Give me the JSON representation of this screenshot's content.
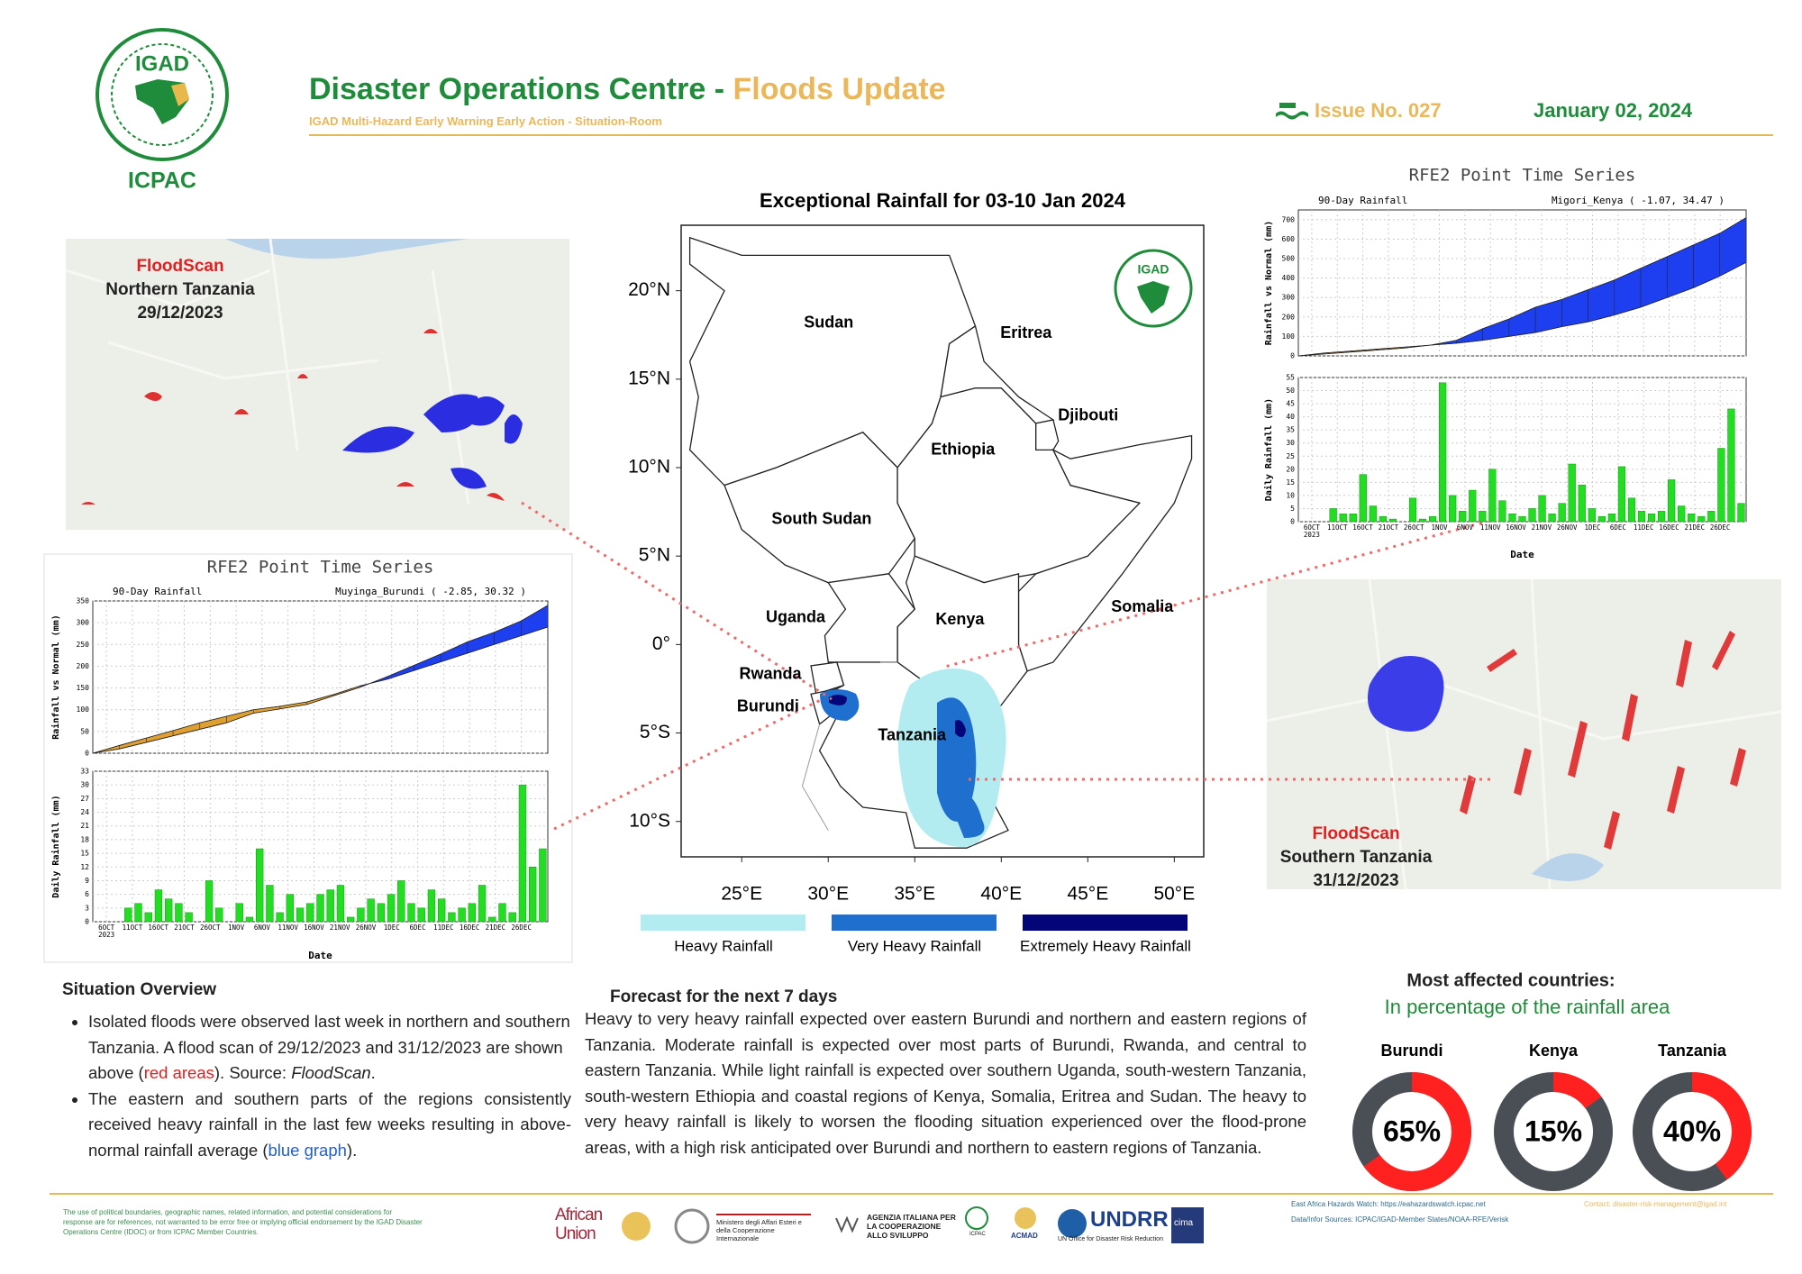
{
  "header": {
    "logo_text": "IGAD",
    "org": "ICPAC",
    "title": "Disaster Operations Centre - ",
    "title_highlight": "Floods Update",
    "subtitle": "IGAD Multi-Hazard Early Warning Early Action - Situation-Room",
    "issue": "Issue No. 027",
    "date": "January 02, 2024"
  },
  "floodscan_north": {
    "label": "FloodScan",
    "place": "Northern Tanzania",
    "date": "29/12/2023"
  },
  "floodscan_south": {
    "label": "FloodScan",
    "place": "Southern Tanzania",
    "date": "31/12/2023"
  },
  "rfe2_muyinga": {
    "title": "RFE2 Point Time Series",
    "panel_label": "90-Day Rainfall",
    "station": "Muyinga_Burundi ( -2.85, 30.32 )",
    "xticks": [
      "6OCT",
      "11OCT",
      "16OCT",
      "21OCT",
      "26OCT",
      "1NOV",
      "6NOV",
      "11NOV",
      "16NOV",
      "21NOV",
      "26NOV",
      "1DEC",
      "6DEC",
      "11DEC",
      "16DEC",
      "21DEC",
      "26DEC"
    ],
    "year": "2023",
    "xlabel": "Date",
    "top": {
      "ylabel": "Rainfall vs Normal (mm)",
      "ylim": [
        0,
        350
      ],
      "yticks": [
        0,
        50,
        100,
        150,
        200,
        250,
        300,
        350
      ],
      "actual": [
        0,
        10,
        25,
        40,
        55,
        70,
        92,
        102,
        112,
        132,
        152,
        176,
        202,
        228,
        256,
        278,
        304,
        340
      ],
      "normal": [
        0,
        18,
        35,
        52,
        70,
        85,
        100,
        108,
        118,
        135,
        155,
        170,
        190,
        210,
        230,
        250,
        270,
        290
      ]
    },
    "bottom": {
      "ylabel": "Daily Rainfall (mm)",
      "ylim": [
        0,
        33
      ],
      "yticks": [
        0,
        3,
        6,
        9,
        12,
        15,
        18,
        21,
        24,
        27,
        30,
        33
      ],
      "values": [
        0,
        0,
        0,
        3,
        4,
        2,
        7,
        5,
        4,
        2,
        0,
        9,
        3,
        0,
        4,
        1,
        16,
        8,
        2,
        6,
        3,
        4,
        6,
        7,
        8,
        1,
        3,
        5,
        4,
        6,
        9,
        4,
        3,
        7,
        5,
        2,
        3,
        4,
        8,
        1,
        4,
        2,
        30,
        12,
        16
      ]
    }
  },
  "rfe2_migori": {
    "title": "RFE2 Point Time Series",
    "panel_label": "90-Day Rainfall",
    "station": "Migori_Kenya ( -1.07, 34.47 )",
    "xticks": [
      "6OCT",
      "11OCT",
      "16OCT",
      "21OCT",
      "26OCT",
      "1NOV",
      "6NOV",
      "11NOV",
      "16NOV",
      "21NOV",
      "26NOV",
      "1DEC",
      "6DEC",
      "11DEC",
      "16DEC",
      "21DEC",
      "26DEC"
    ],
    "year": "2023",
    "xlabel": "Date",
    "top": {
      "ylabel": "Rainfall vs Normal (mm)",
      "ylim": [
        0,
        750
      ],
      "yticks": [
        0,
        100,
        200,
        300,
        400,
        500,
        600,
        700
      ],
      "actual": [
        0,
        10,
        20,
        30,
        40,
        55,
        80,
        140,
        190,
        250,
        290,
        340,
        390,
        450,
        510,
        570,
        630,
        710
      ],
      "normal": [
        0,
        15,
        25,
        35,
        45,
        55,
        65,
        80,
        100,
        120,
        150,
        175,
        210,
        250,
        300,
        350,
        410,
        480
      ]
    },
    "bottom": {
      "ylabel": "Daily Rainfall (mm)",
      "ylim": [
        0,
        55
      ],
      "yticks": [
        0,
        5,
        10,
        15,
        20,
        25,
        30,
        35,
        40,
        45,
        50,
        55
      ],
      "values": [
        0,
        0,
        0,
        5,
        3,
        3,
        18,
        6,
        2,
        1,
        0,
        9,
        1,
        2,
        53,
        10,
        4,
        12,
        4,
        20,
        8,
        3,
        2,
        5,
        10,
        3,
        7,
        22,
        14,
        5,
        2,
        3,
        21,
        9,
        4,
        3,
        4,
        16,
        6,
        3,
        2,
        4,
        28,
        43,
        7
      ]
    }
  },
  "map": {
    "title": "Exceptional Rainfall for 03-10 Jan 2024",
    "countries": [
      "Sudan",
      "Eritrea",
      "Djibouti",
      "Ethiopia",
      "South Sudan",
      "Uganda",
      "Kenya",
      "Somalia",
      "Rwanda",
      "Burundi",
      "Tanzania"
    ],
    "xlim": [
      21.5,
      51.7
    ],
    "ylim": [
      -12,
      23.7
    ],
    "xticks": [
      {
        "value": 25,
        "label": "25°E"
      },
      {
        "value": 30,
        "label": "30°E"
      },
      {
        "value": 35,
        "label": "35°E"
      },
      {
        "value": 40,
        "label": "40°E"
      },
      {
        "value": 45,
        "label": "45°E"
      },
      {
        "value": 50,
        "label": "50°E"
      }
    ],
    "yticks": [
      {
        "value": 20,
        "label": "20°N"
      },
      {
        "value": 15,
        "label": "15°N"
      },
      {
        "value": 10,
        "label": "10°N"
      },
      {
        "value": 5,
        "label": "5°N"
      },
      {
        "value": 0,
        "label": "0°"
      },
      {
        "value": -5,
        "label": "5°S"
      },
      {
        "value": -10,
        "label": "10°S"
      }
    ],
    "legend": [
      {
        "label": "Heavy Rainfall",
        "color": "#b3ecf0"
      },
      {
        "label": "Very Heavy Rainfall",
        "color": "#1f6fcf"
      },
      {
        "label": "Extremely Heavy Rainfall",
        "color": "#05057a"
      }
    ]
  },
  "situation": {
    "heading": "Situation Overview",
    "bullet1": [
      "Isolated floods were observed last week in northern and southern Tanzania. A flood scan of 29/12/2023 and 31/12/2023 are shown above (",
      "red areas",
      "). Source: ",
      "FloodScan",
      "."
    ],
    "bullet2": [
      "The eastern and southern parts of the regions consistently received heavy rainfall in the last few weeks resulting in above-normal rainfall average (",
      "blue graph",
      ")."
    ]
  },
  "forecast": {
    "heading": "Forecast for the next 7 days",
    "text": "Heavy to very heavy rainfall expected over eastern Burundi and northern and eastern regions of Tanzania. Moderate rainfall is expected over most parts of Burundi, Rwanda, and central to eastern Tanzania. While light rainfall is expected over southern Uganda, south-western Tanzania, south-western Ethiopia and coastal regions of Kenya, Somalia, Eritrea and Sudan. The heavy to very heavy rainfall is likely to worsen the flooding situation experienced over the flood-prone areas, with a high risk anticipated over Burundi and northern to eastern regions of Tanzania."
  },
  "affected": {
    "heading": "Most affected countries:",
    "subheading": "In percentage of the rainfall area",
    "countries": [
      "Burundi",
      "Kenya",
      "Tanzania"
    ],
    "values": [
      65,
      15,
      40
    ],
    "value_labels": [
      "65%",
      "15%",
      "40%"
    ]
  },
  "footer": {
    "disclaimer": "The use of political boundaries, geographic names, related information, and potential considerations for response are for references, not warranted to be error free or implying official endorsement by the IGAD Disaster Operations Centre (IDOC) or from ICPAC Member Countries.",
    "african_union": "African Union",
    "ministry": "Ministero degli Affari Esteri e della Cooperazione Internazionale",
    "aics": "AGENZIA ITALIANA PER LA COOPERAZIONE ALLO SVILUPPO",
    "icpac": "ICPAC",
    "acmad": "ACMAD",
    "undrr": "UNDRR",
    "undrr_sub": "UN Office for Disaster Risk Reduction",
    "cima": "cima",
    "hazards_watch": "East Africa Hazards Watch: https://eahazardswatch.icpac.net",
    "contact": "Contact: disaster-risk-management@igad.int",
    "sources": "Data/Infor Sources: ICPAC/IGAD-Member States/NOAA-RFE/Verisk"
  }
}
